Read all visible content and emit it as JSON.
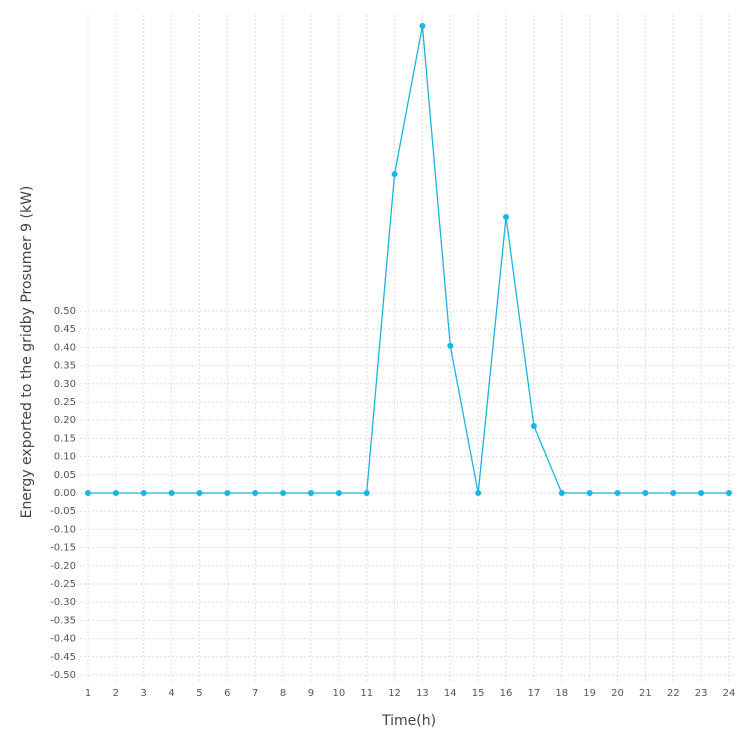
{
  "chart_data": {
    "type": "line",
    "x_label": "Time(h)",
    "y_label": "Energy exported to the gridby Prosumer 9 (kW)",
    "x": [
      1,
      2,
      3,
      4,
      5,
      6,
      7,
      8,
      9,
      10,
      11,
      12,
      13,
      14,
      15,
      16,
      17,
      18,
      19,
      20,
      21,
      22,
      23,
      24
    ],
    "series": [
      {
        "color": "#19b5e3",
        "values": [
          0,
          0,
          0,
          0,
          0,
          0,
          0,
          0,
          0,
          0,
          0,
          0.876,
          1.283,
          0.404,
          0,
          0.758,
          0.184,
          0,
          0,
          0,
          0,
          0,
          0,
          0
        ]
      }
    ],
    "xlim": [
      1,
      24
    ],
    "xticks": [
      1,
      2,
      3,
      4,
      5,
      6,
      7,
      8,
      9,
      10,
      11,
      12,
      13,
      14,
      15,
      16,
      17,
      18,
      19,
      20,
      21,
      22,
      23,
      24
    ],
    "ylim": [
      -0.522,
      1.313
    ],
    "yticks": [
      {
        "value": -0.5,
        "label": "-0.50"
      },
      {
        "value": -0.45,
        "label": "-0.45"
      },
      {
        "value": -0.4,
        "label": "-0.40"
      },
      {
        "value": -0.35,
        "label": "-0.35"
      },
      {
        "value": -0.3,
        "label": "-0.30"
      },
      {
        "value": -0.25,
        "label": "-0.25"
      },
      {
        "value": -0.2,
        "label": "-0.20"
      },
      {
        "value": -0.15,
        "label": "-0.15"
      },
      {
        "value": -0.1,
        "label": "-0.10"
      },
      {
        "value": -0.05,
        "label": "-0.05"
      },
      {
        "value": 0,
        "label": "0.00"
      },
      {
        "value": 0.05,
        "label": "0.05"
      },
      {
        "value": 0.1,
        "label": "0.10"
      },
      {
        "value": 0.15,
        "label": "0.15"
      },
      {
        "value": 0.2,
        "label": "0.20"
      },
      {
        "value": 0.25,
        "label": "0.25"
      },
      {
        "value": 0.3,
        "label": "0.30"
      },
      {
        "value": 0.35,
        "label": "0.35"
      },
      {
        "value": 0.4,
        "label": "0.40"
      },
      {
        "value": 0.45,
        "label": "0.45"
      },
      {
        "value": 0.5,
        "label": "0.50"
      }
    ],
    "grid": true
  }
}
